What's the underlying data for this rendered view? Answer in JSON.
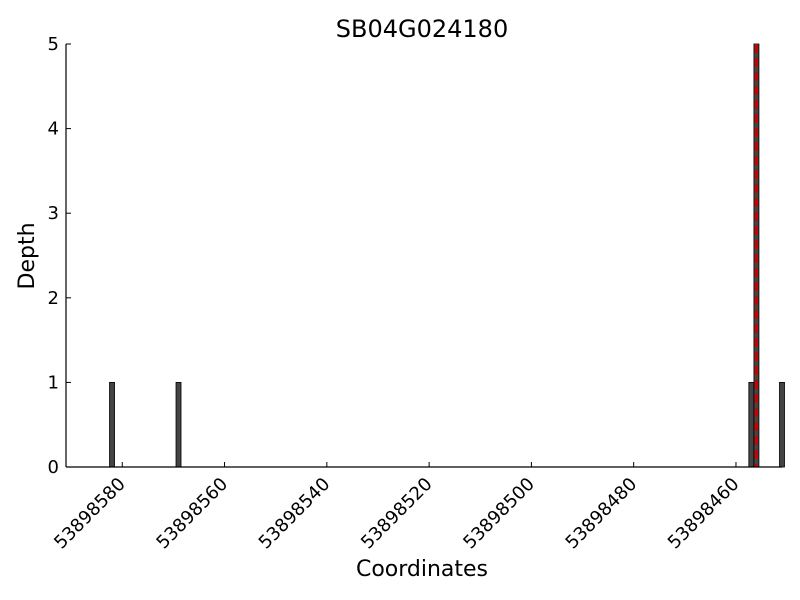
{
  "chart_data": {
    "type": "bar",
    "title": "SB04G024180",
    "xlabel": "Coordinates",
    "ylabel": "Depth",
    "x_axis_inverted": true,
    "xlim": [
      53898591,
      53898451
    ],
    "ylim": [
      0,
      5
    ],
    "x_ticks": [
      53898580,
      53898560,
      53898540,
      53898520,
      53898500,
      53898480,
      53898460
    ],
    "y_ticks": [
      0,
      1,
      2,
      3,
      4,
      5
    ],
    "grid": false,
    "bar_color": "#444444",
    "marker_color": "#cc0000",
    "bars": [
      {
        "x": 53898582,
        "depth": 1
      },
      {
        "x": 53898569,
        "depth": 1
      },
      {
        "x": 53898457,
        "depth": 1
      },
      {
        "x": 53898456,
        "depth": 5
      },
      {
        "x": 53898451,
        "depth": 1
      }
    ],
    "marker_line_x": 53898456
  }
}
